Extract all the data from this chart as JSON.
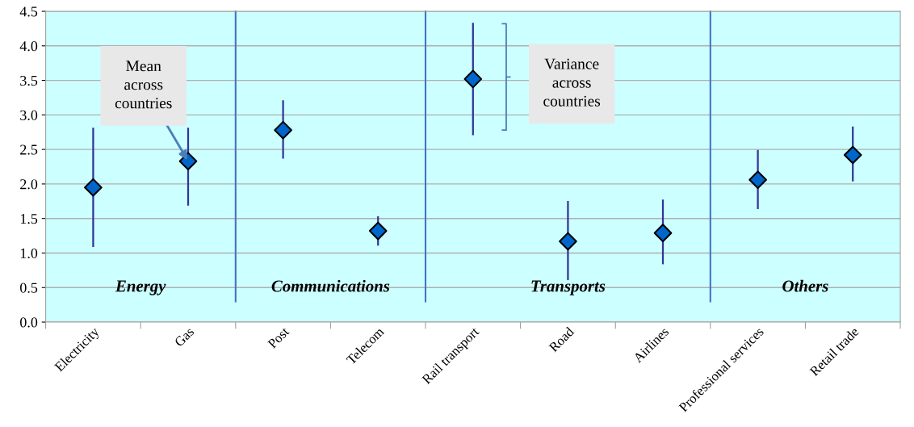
{
  "chart_data": {
    "type": "scatter",
    "categories": [
      "Electricity",
      "Gas",
      "Post",
      "Telecom",
      "Rail transport",
      "Road",
      "Airlines",
      "Professional services",
      "Retail trade"
    ],
    "series": [
      {
        "color": "#0066cc",
        "values": [
          1.95,
          2.33,
          2.78,
          1.32,
          3.52,
          1.17,
          1.29,
          2.06,
          2.42
        ],
        "errors": [
          [
            1.1,
            2.8
          ],
          [
            1.7,
            2.8
          ],
          [
            2.38,
            3.2
          ],
          [
            1.12,
            1.52
          ],
          [
            2.72,
            4.32
          ],
          [
            0.62,
            1.74
          ],
          [
            0.85,
            1.76
          ],
          [
            1.65,
            2.48
          ],
          [
            2.05,
            2.82
          ]
        ]
      }
    ],
    "ylim": [
      0,
      4.5
    ],
    "yticks": [
      {
        "value": 0,
        "label": "0.0"
      },
      {
        "value": 0.5,
        "label": "0.5"
      },
      {
        "value": 1,
        "label": "1.0"
      },
      {
        "value": 1.5,
        "label": "1.5"
      },
      {
        "value": 2,
        "label": "2.0"
      },
      {
        "value": 2.5,
        "label": "2.5"
      },
      {
        "value": 3,
        "label": "3.0"
      },
      {
        "value": 3.5,
        "label": "3.5"
      },
      {
        "value": 4,
        "label": "4.0"
      },
      {
        "value": 4.5,
        "label": "4.5"
      }
    ],
    "grid": "y",
    "marker": "diamond",
    "annotations": [
      {
        "text": "Mean across countries",
        "x": "Gas",
        "y": 2.33
      },
      "Variance across countries",
      "Energy",
      "Communications",
      "Transports",
      "Others"
    ]
  }
}
